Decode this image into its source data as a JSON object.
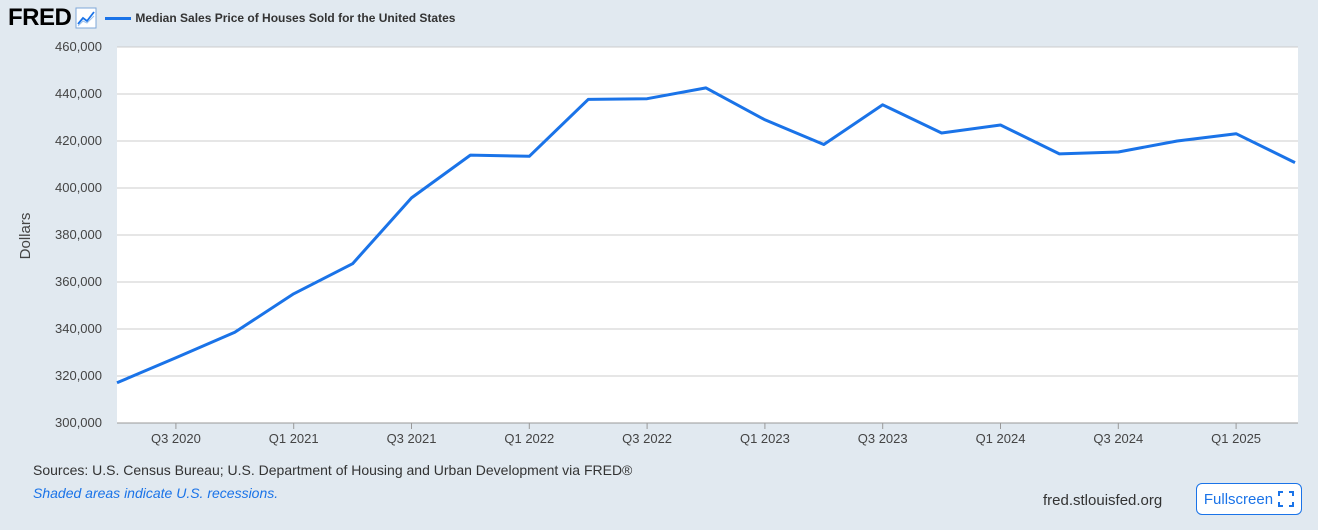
{
  "header": {
    "logo": "FRED",
    "legend_label": "Median Sales Price of Houses Sold for the United States"
  },
  "footer": {
    "sources": "Sources: U.S. Census Bureau; U.S. Department of Housing and Urban Development via FRED®",
    "note": "Shaded areas indicate U.S. recessions.",
    "url": "fred.stlouisfed.org",
    "fullscreen_label": "Fullscreen"
  },
  "colors": {
    "line": "#1a73e8",
    "plot_bg": "#ffffff",
    "page_bg": "#e1e9f0",
    "grid": "#cccccc"
  },
  "chart_data": {
    "type": "line",
    "title": "",
    "xlabel": "",
    "ylabel": "Dollars",
    "ylim": [
      300000,
      460000
    ],
    "yticks": [
      300000,
      320000,
      340000,
      360000,
      380000,
      400000,
      420000,
      440000,
      460000
    ],
    "ytick_labels": [
      "300,000",
      "320,000",
      "340,000",
      "360,000",
      "380,000",
      "400,000",
      "420,000",
      "440,000",
      "460,000"
    ],
    "x_categories": [
      "Q2 2020",
      "Q3 2020",
      "Q4 2020",
      "Q1 2021",
      "Q2 2021",
      "Q3 2021",
      "Q4 2021",
      "Q1 2022",
      "Q2 2022",
      "Q3 2022",
      "Q4 2022",
      "Q1 2023",
      "Q2 2023",
      "Q3 2023",
      "Q4 2023",
      "Q1 2024",
      "Q2 2024",
      "Q3 2024",
      "Q4 2024",
      "Q1 2025",
      "Q2 2025"
    ],
    "xtick_labels": [
      "Q3 2020",
      "Q1 2021",
      "Q3 2021",
      "Q1 2022",
      "Q3 2022",
      "Q1 2023",
      "Q3 2023",
      "Q1 2024",
      "Q3 2024",
      "Q1 2025"
    ],
    "series": [
      {
        "values": [
          317100,
          327800,
          338600,
          355000,
          367800,
          395800,
          414000,
          413500,
          437700,
          438000,
          442600,
          429000,
          418500,
          435400,
          423400,
          426800,
          414500,
          415300,
          420000,
          423100,
          410800
        ]
      }
    ],
    "grid": true,
    "legend": "top-left"
  }
}
